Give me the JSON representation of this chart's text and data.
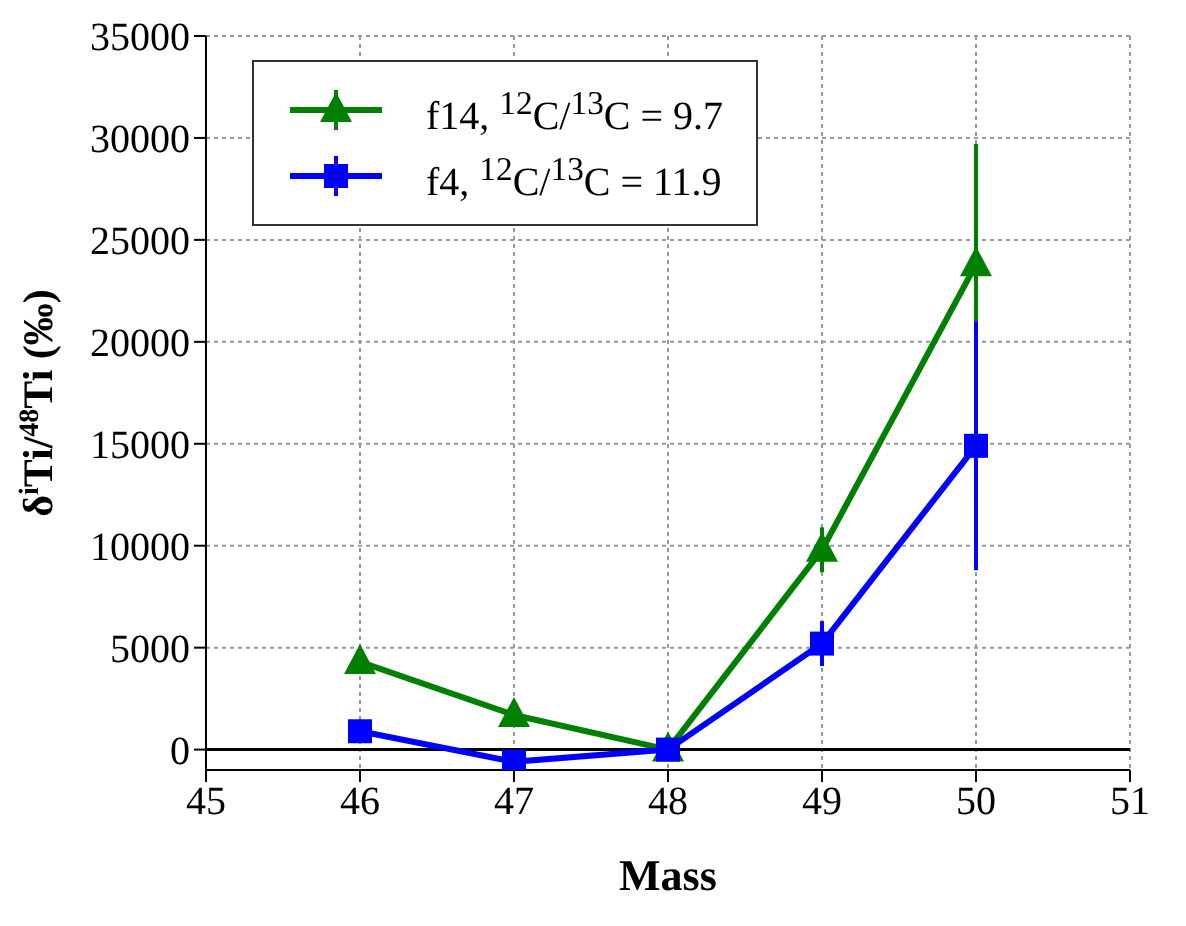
{
  "chart_data": {
    "type": "line",
    "xlabel": "Mass",
    "ylabel": "δ$^{i}$Ti/$^{48}$Ti (‰)",
    "x": [
      46,
      47,
      48,
      49,
      50
    ],
    "series": [
      {
        "name": "f14, $^{12}$C/$^{13}$C = 9.7",
        "color": "#008000",
        "marker": "triangle",
        "values": [
          4300,
          1700,
          0,
          9800,
          23800
        ],
        "errors": [
          null,
          null,
          null,
          1100,
          5900
        ]
      },
      {
        "name": "f4, $^{12}$C/$^{13}$C = 11.9",
        "color": "#0000ff",
        "marker": "square",
        "values": [
          900,
          -600,
          0,
          5200,
          14900
        ],
        "errors": [
          null,
          null,
          null,
          1100,
          6100
        ]
      }
    ],
    "xlim": [
      45,
      51
    ],
    "xticks": [
      45,
      46,
      47,
      48,
      49,
      50,
      51
    ],
    "ylim": [
      -1000,
      35000
    ],
    "yticks": [
      0,
      5000,
      10000,
      15000,
      20000,
      25000,
      30000,
      35000
    ],
    "grid": true,
    "legend": "top left",
    "line_style": "solid",
    "ref_lines": [
      {
        "axis": "y",
        "value": 0,
        "color": "#000000"
      }
    ]
  }
}
